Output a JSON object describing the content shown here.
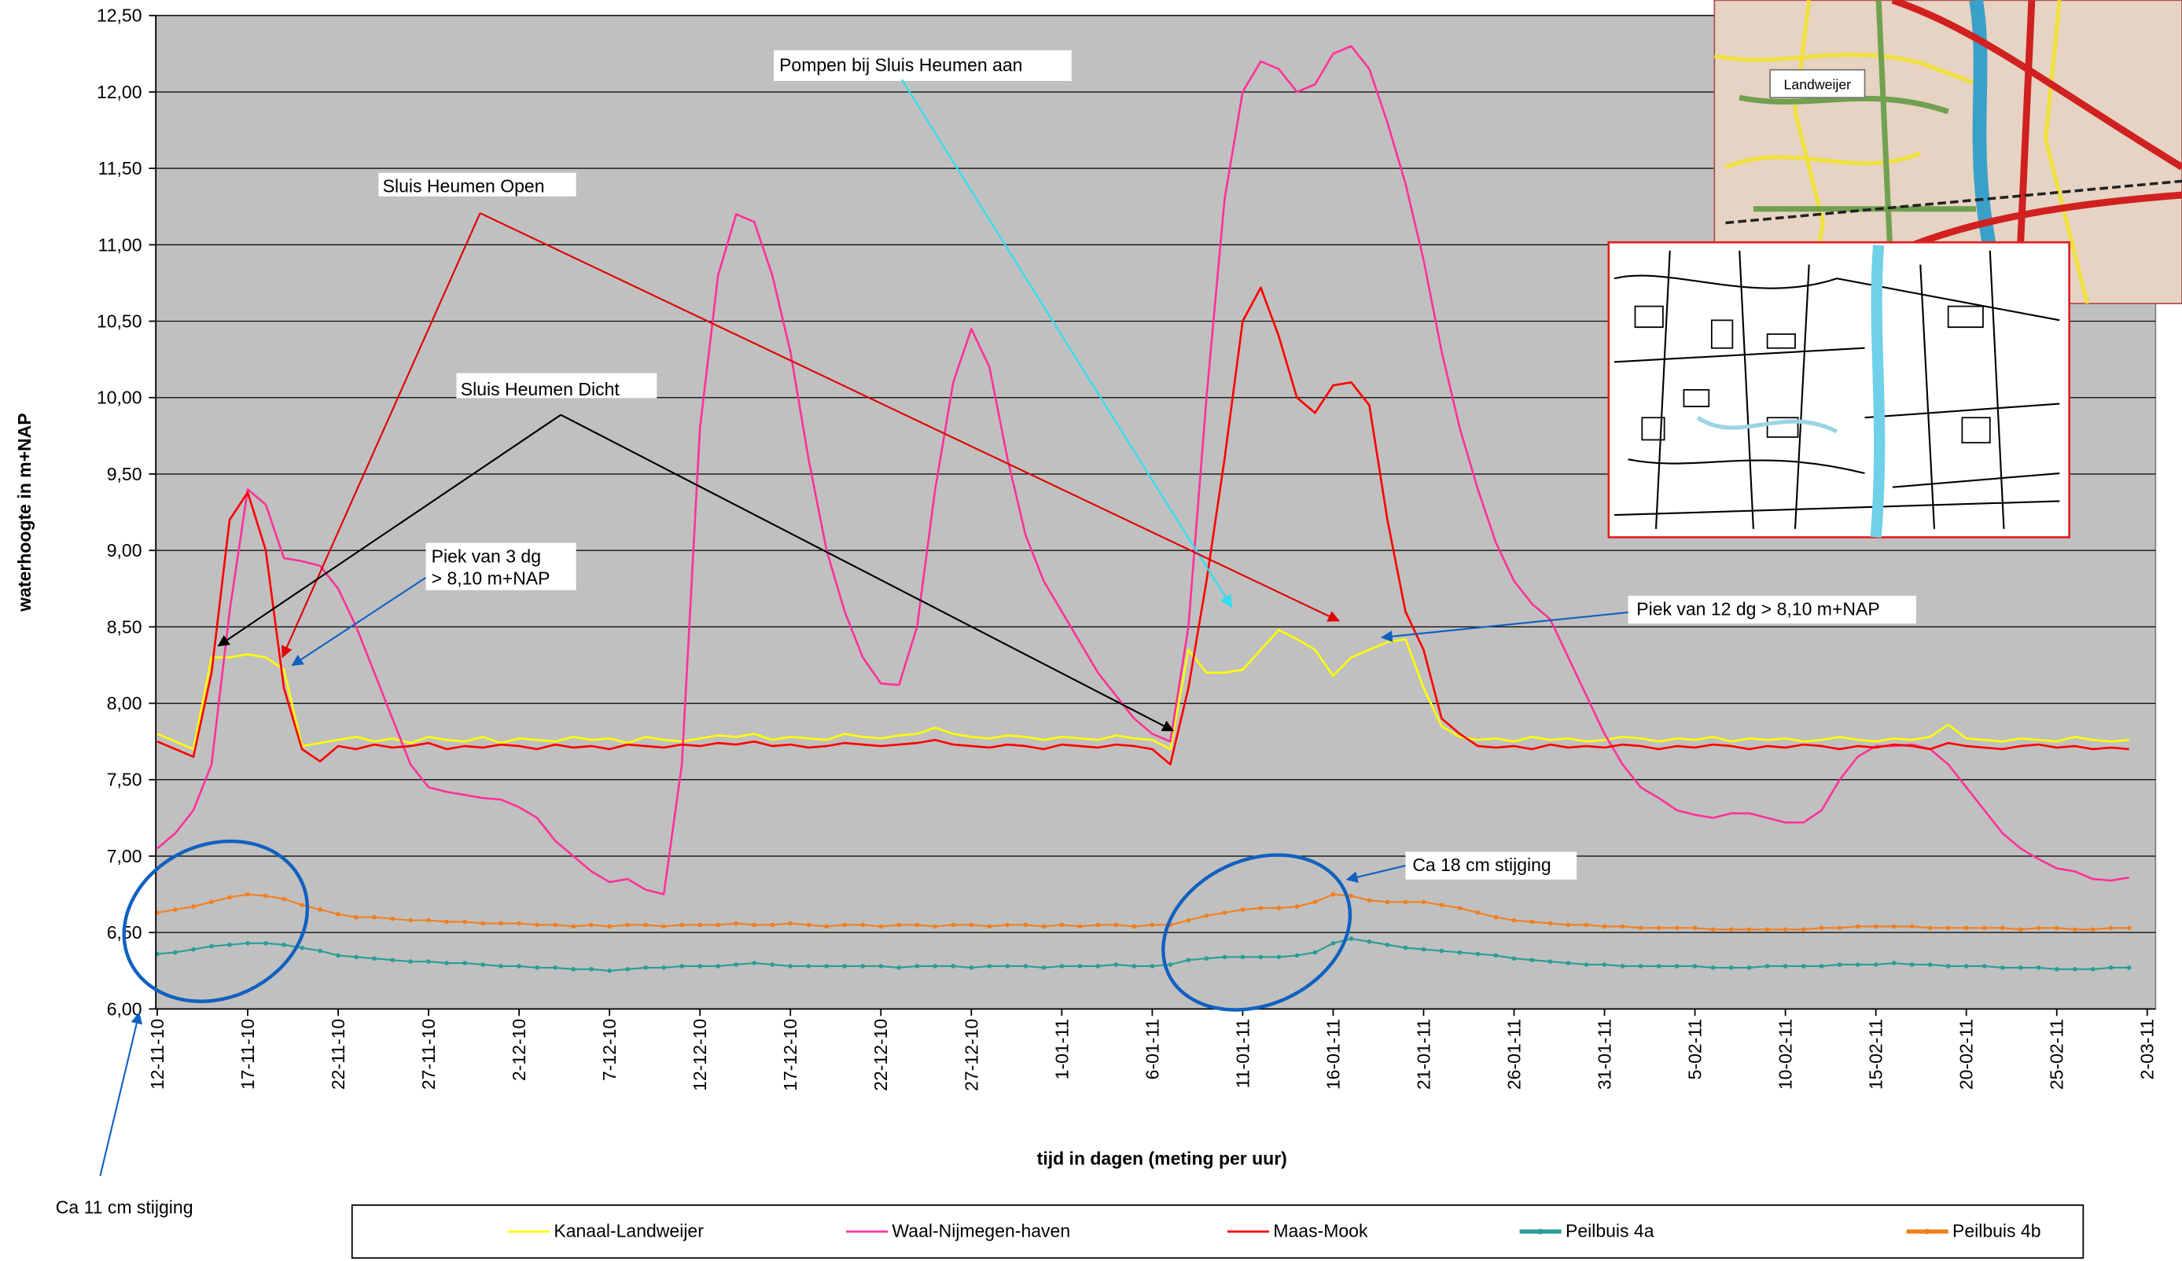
{
  "chart_data": {
    "type": "line",
    "y_label": "waterhoogte in m+NAP",
    "x_label": "tijd in dagen (meting per uur)",
    "categories": [
      "12-11-10",
      null,
      null,
      null,
      null,
      "17-11-10",
      null,
      null,
      null,
      null,
      "22-11-10",
      null,
      null,
      null,
      null,
      "27-11-10",
      null,
      null,
      null,
      null,
      "2-12-10",
      null,
      null,
      null,
      null,
      "7-12-10",
      null,
      null,
      null,
      null,
      "12-12-10",
      null,
      null,
      null,
      null,
      "17-12-10",
      null,
      null,
      null,
      null,
      "22-12-10",
      null,
      null,
      null,
      null,
      "27-12-10",
      null,
      null,
      null,
      null,
      "1-01-11",
      null,
      null,
      null,
      null,
      "6-01-11",
      null,
      null,
      null,
      null,
      "11-01-11",
      null,
      null,
      null,
      null,
      "16-01-11",
      null,
      null,
      null,
      null,
      "21-01-11",
      null,
      null,
      null,
      null,
      "26-01-11",
      null,
      null,
      null,
      null,
      "31-01-11",
      null,
      null,
      null,
      null,
      "5-02-11",
      null,
      null,
      null,
      null,
      "10-02-11",
      null,
      null,
      null,
      null,
      "15-02-11",
      null,
      null,
      null,
      null,
      "20-02-11",
      null,
      null,
      null,
      null,
      "25-02-11",
      null,
      null,
      null,
      null,
      "2-03-11"
    ],
    "ylim": [
      6,
      12.5
    ],
    "yticks": [
      {
        "value": 6,
        "label": "6,00"
      },
      {
        "value": 6.5,
        "label": "6,50"
      },
      {
        "value": 7,
        "label": "7,00"
      },
      {
        "value": 7.5,
        "label": "7,50"
      },
      {
        "value": 8,
        "label": "8,00"
      },
      {
        "value": 8.5,
        "label": "8,50"
      },
      {
        "value": 9,
        "label": "9,00"
      },
      {
        "value": 9.5,
        "label": "9,50"
      },
      {
        "value": 10,
        "label": "10,00"
      },
      {
        "value": 10.5,
        "label": "10,50"
      },
      {
        "value": 11,
        "label": "11,00"
      },
      {
        "value": 11.5,
        "label": "11,50"
      },
      {
        "value": 12,
        "label": "12,00"
      },
      {
        "value": 12.5,
        "label": "12,50"
      }
    ],
    "grid": true,
    "legend": "bottom",
    "series": [
      {
        "name": "Kanaal-Landweijer",
        "color": "#ffff00",
        "marker": false,
        "values": [
          7.8,
          7.75,
          7.7,
          8.3,
          8.3,
          8.32,
          8.3,
          8.22,
          7.72,
          7.74,
          7.76,
          7.78,
          7.75,
          7.77,
          7.74,
          7.78,
          7.76,
          7.75,
          7.78,
          7.74,
          7.77,
          7.76,
          7.75,
          7.78,
          7.76,
          7.77,
          7.74,
          7.78,
          7.76,
          7.75,
          7.77,
          7.79,
          7.78,
          7.8,
          7.76,
          7.78,
          7.77,
          7.76,
          7.8,
          7.78,
          7.77,
          7.79,
          7.8,
          7.84,
          7.8,
          7.78,
          7.77,
          7.79,
          7.78,
          7.76,
          7.78,
          7.77,
          7.76,
          7.79,
          7.77,
          7.76,
          7.7,
          8.35,
          8.2,
          8.2,
          8.22,
          8.35,
          8.48,
          8.42,
          8.35,
          8.18,
          8.3,
          8.35,
          8.4,
          8.42,
          8.1,
          7.85,
          7.78,
          7.76,
          7.77,
          7.75,
          7.78,
          7.76,
          7.77,
          7.75,
          7.76,
          7.78,
          7.77,
          7.75,
          7.77,
          7.76,
          7.78,
          7.75,
          7.77,
          7.76,
          7.77,
          7.75,
          7.76,
          7.78,
          7.76,
          7.75,
          7.77,
          7.76,
          7.78,
          7.86,
          7.77,
          7.76,
          7.75,
          7.77,
          7.76,
          7.75,
          7.78,
          7.76,
          7.75,
          7.76,
          null
        ]
      },
      {
        "name": "Waal-Nijmegen-haven",
        "color": "#ff3399",
        "marker": false,
        "values": [
          7.05,
          7.15,
          7.3,
          7.6,
          8.6,
          9.4,
          9.3,
          8.95,
          8.93,
          8.9,
          8.75,
          8.5,
          8.2,
          7.9,
          7.6,
          7.45,
          7.42,
          7.4,
          7.38,
          7.37,
          7.32,
          7.25,
          7.1,
          7.0,
          6.9,
          6.83,
          6.85,
          6.78,
          6.75,
          7.6,
          9.8,
          10.8,
          11.2,
          11.15,
          10.8,
          10.3,
          9.6,
          9.0,
          8.6,
          8.3,
          8.13,
          8.12,
          8.5,
          9.4,
          10.1,
          10.45,
          10.2,
          9.6,
          9.1,
          8.8,
          8.6,
          8.4,
          8.2,
          8.05,
          7.9,
          7.8,
          7.75,
          8.5,
          10.0,
          11.3,
          12.0,
          12.2,
          12.15,
          12.0,
          12.05,
          12.25,
          12.3,
          12.15,
          11.8,
          11.4,
          10.9,
          10.3,
          9.8,
          9.4,
          9.05,
          8.8,
          8.65,
          8.55,
          8.3,
          8.05,
          7.8,
          7.6,
          7.45,
          7.38,
          7.3,
          7.27,
          7.25,
          7.28,
          7.28,
          7.25,
          7.22,
          7.22,
          7.3,
          7.5,
          7.65,
          7.72,
          7.72,
          7.73,
          7.7,
          7.6,
          7.45,
          7.3,
          7.15,
          7.05,
          6.98,
          6.92,
          6.9,
          6.85,
          6.84,
          6.86,
          null
        ]
      },
      {
        "name": "Maas-Mook",
        "color": "#ff0000",
        "marker": false,
        "values": [
          7.75,
          7.7,
          7.65,
          8.2,
          9.2,
          9.38,
          9.0,
          8.1,
          7.7,
          7.62,
          7.72,
          7.7,
          7.73,
          7.71,
          7.72,
          7.74,
          7.7,
          7.72,
          7.71,
          7.73,
          7.72,
          7.7,
          7.73,
          7.71,
          7.72,
          7.7,
          7.73,
          7.72,
          7.71,
          7.73,
          7.72,
          7.74,
          7.73,
          7.75,
          7.72,
          7.73,
          7.71,
          7.72,
          7.74,
          7.73,
          7.72,
          7.73,
          7.74,
          7.76,
          7.73,
          7.72,
          7.71,
          7.73,
          7.72,
          7.7,
          7.73,
          7.72,
          7.71,
          7.73,
          7.72,
          7.7,
          7.6,
          8.1,
          8.8,
          9.6,
          10.5,
          10.72,
          10.4,
          10.0,
          9.9,
          10.08,
          10.1,
          9.95,
          9.2,
          8.6,
          8.35,
          7.9,
          7.8,
          7.72,
          7.71,
          7.72,
          7.7,
          7.73,
          7.71,
          7.72,
          7.71,
          7.73,
          7.72,
          7.7,
          7.72,
          7.71,
          7.73,
          7.72,
          7.7,
          7.72,
          7.71,
          7.73,
          7.72,
          7.7,
          7.72,
          7.71,
          7.73,
          7.72,
          7.7,
          7.74,
          7.72,
          7.71,
          7.7,
          7.72,
          7.73,
          7.71,
          7.72,
          7.7,
          7.71,
          7.7,
          null
        ]
      },
      {
        "name": "Peilbuis 4a",
        "color": "#2a9d96",
        "marker": true,
        "values": [
          6.36,
          6.37,
          6.39,
          6.41,
          6.42,
          6.43,
          6.43,
          6.42,
          6.4,
          6.38,
          6.35,
          6.34,
          6.33,
          6.32,
          6.31,
          6.31,
          6.3,
          6.3,
          6.29,
          6.28,
          6.28,
          6.27,
          6.27,
          6.26,
          6.26,
          6.25,
          6.26,
          6.27,
          6.27,
          6.28,
          6.28,
          6.28,
          6.29,
          6.3,
          6.29,
          6.28,
          6.28,
          6.28,
          6.28,
          6.28,
          6.28,
          6.27,
          6.28,
          6.28,
          6.28,
          6.27,
          6.28,
          6.28,
          6.28,
          6.27,
          6.28,
          6.28,
          6.28,
          6.29,
          6.28,
          6.28,
          6.29,
          6.32,
          6.33,
          6.34,
          6.34,
          6.34,
          6.34,
          6.35,
          6.37,
          6.43,
          6.46,
          6.44,
          6.42,
          6.4,
          6.39,
          6.38,
          6.37,
          6.36,
          6.35,
          6.33,
          6.32,
          6.31,
          6.3,
          6.29,
          6.29,
          6.28,
          6.28,
          6.28,
          6.28,
          6.28,
          6.27,
          6.27,
          6.27,
          6.28,
          6.28,
          6.28,
          6.28,
          6.29,
          6.29,
          6.29,
          6.3,
          6.29,
          6.29,
          6.28,
          6.28,
          6.28,
          6.27,
          6.27,
          6.27,
          6.26,
          6.26,
          6.26,
          6.27,
          6.27,
          null
        ]
      },
      {
        "name": "Peilbuis 4b",
        "color": "#f08020",
        "marker": true,
        "values": [
          6.63,
          6.65,
          6.67,
          6.7,
          6.73,
          6.75,
          6.74,
          6.72,
          6.68,
          6.65,
          6.62,
          6.6,
          6.6,
          6.59,
          6.58,
          6.58,
          6.57,
          6.57,
          6.56,
          6.56,
          6.56,
          6.55,
          6.55,
          6.54,
          6.55,
          6.54,
          6.55,
          6.55,
          6.54,
          6.55,
          6.55,
          6.55,
          6.56,
          6.55,
          6.55,
          6.56,
          6.55,
          6.54,
          6.55,
          6.55,
          6.54,
          6.55,
          6.55,
          6.54,
          6.55,
          6.55,
          6.54,
          6.55,
          6.55,
          6.54,
          6.55,
          6.54,
          6.55,
          6.55,
          6.54,
          6.55,
          6.55,
          6.58,
          6.61,
          6.63,
          6.65,
          6.66,
          6.66,
          6.67,
          6.7,
          6.75,
          6.74,
          6.71,
          6.7,
          6.7,
          6.7,
          6.68,
          6.66,
          6.63,
          6.6,
          6.58,
          6.57,
          6.56,
          6.55,
          6.55,
          6.54,
          6.54,
          6.53,
          6.53,
          6.53,
          6.53,
          6.52,
          6.52,
          6.52,
          6.52,
          6.52,
          6.52,
          6.53,
          6.53,
          6.54,
          6.54,
          6.54,
          6.54,
          6.53,
          6.53,
          6.53,
          6.53,
          6.53,
          6.52,
          6.53,
          6.53,
          6.52,
          6.52,
          6.53,
          6.53,
          null
        ]
      }
    ],
    "annotations": [
      "Pompen bij Sluis Heumen aan",
      "Sluis Heumen Open",
      "Sluis Heumen Dicht",
      "Piek van 3 dg",
      "> 8,10 m+NAP",
      "Piek van 12 dg > 8,10 m+NAP",
      "Ca 18 cm stijging",
      "Ca 11 cm stijging"
    ],
    "map_labels": [
      "Landweijer"
    ]
  }
}
